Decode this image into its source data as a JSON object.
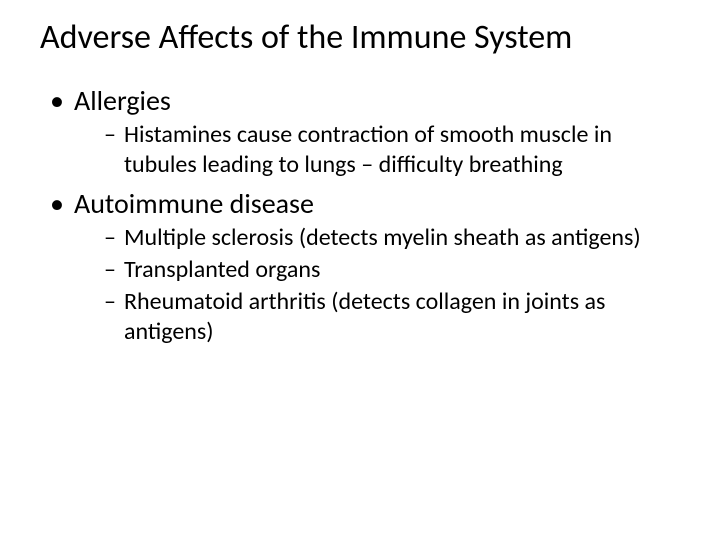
{
  "slide": {
    "background_color": "#ffffff",
    "text_color": "#000000",
    "font_family": "Calibri",
    "title": {
      "text": "Adverse Affects of the Immune System",
      "fontsize": 34,
      "weight": 400
    },
    "bullets": [
      {
        "text": "Allergies",
        "fontsize": 28,
        "marker": "•",
        "sub": [
          {
            "text": "Histamines cause contraction of smooth muscle in tubules leading to lungs – difficulty breathing",
            "fontsize": 24,
            "marker": "–"
          }
        ]
      },
      {
        "text": "Autoimmune disease",
        "fontsize": 28,
        "marker": "•",
        "sub": [
          {
            "text": "Multiple sclerosis (detects myelin sheath as antigens)",
            "fontsize": 24,
            "marker": "–"
          },
          {
            "text": "Transplanted organs",
            "fontsize": 24,
            "marker": "–"
          },
          {
            "text": "Rheumatoid arthritis (detects collagen in joints as antigens)",
            "fontsize": 24,
            "marker": "–"
          }
        ]
      }
    ]
  }
}
